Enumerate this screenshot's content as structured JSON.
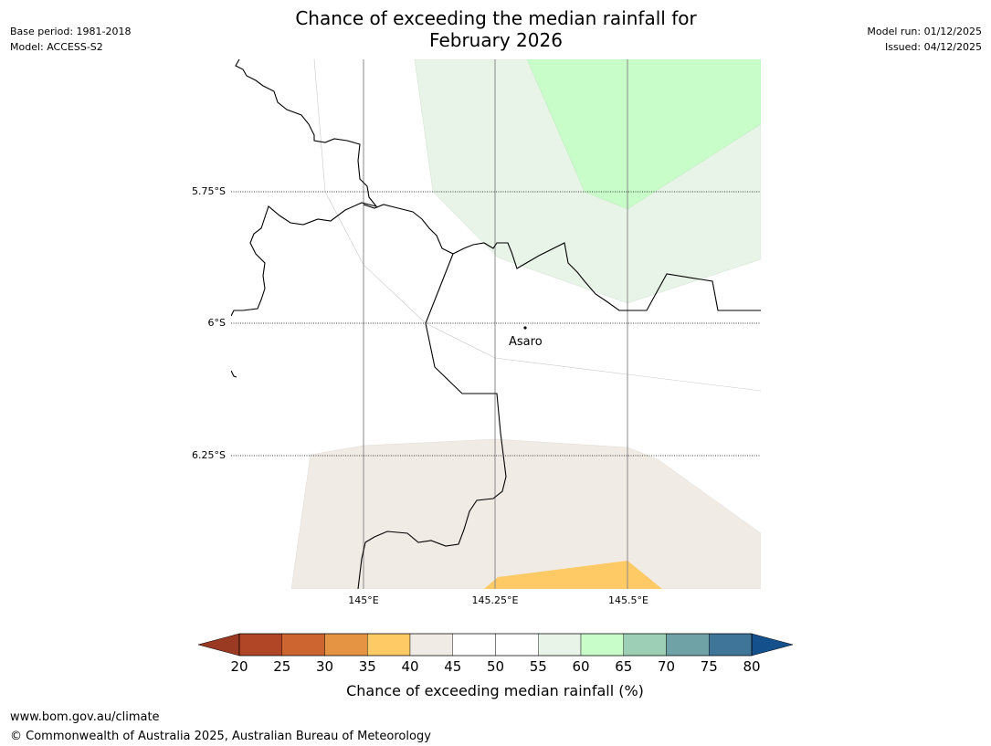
{
  "title": {
    "line1": "Chance of exceeding the median rainfall for",
    "line2": "February 2026"
  },
  "meta_left": {
    "base_period": "Base period: 1981-2018",
    "model": "Model: ACCESS-S2"
  },
  "meta_right": {
    "model_run": "Model run: 01/12/2025",
    "issued": "Issued: 04/12/2025"
  },
  "map": {
    "lat_labels": [
      "5.75°S",
      "6°S",
      "6.25°S"
    ],
    "lon_labels": [
      "145°E",
      "145.25°E",
      "145.5°E"
    ],
    "place": "Asaro"
  },
  "colorbar": {
    "label": "Chance of exceeding median rainfall (%)",
    "ticks": [
      "20",
      "25",
      "30",
      "35",
      "40",
      "45",
      "50",
      "55",
      "60",
      "65",
      "70",
      "75",
      "80"
    ],
    "low_extend_color": "#9a3a22",
    "high_extend_color": "#14508c",
    "colors": [
      "#b04626",
      "#cd6530",
      "#e49443",
      "#fdca65",
      "#f0ebe5",
      "#ffffff",
      "#ffffff",
      "#e8f4e8",
      "#c8fcc8",
      "#9ccfb6",
      "#6ea2a6",
      "#3f7598"
    ]
  },
  "footer": {
    "url": "www.bom.gov.au/climate",
    "copyright": "© Commonwealth of Australia 2025, Australian Bureau of Meteorology"
  }
}
